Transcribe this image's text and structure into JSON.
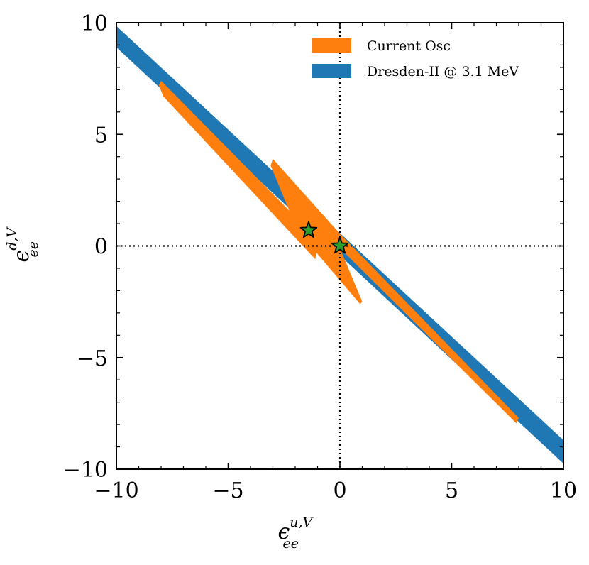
{
  "chart_data": {
    "type": "area",
    "title": "",
    "xlabel": {
      "symbol": "ϵ",
      "sub": "ee",
      "sup": "u,V"
    },
    "ylabel": {
      "symbol": "ϵ",
      "sub": "ee",
      "sup": "d,V"
    },
    "xlim": [
      -10,
      10
    ],
    "ylim": [
      -10,
      10
    ],
    "x_ticks": [
      -10,
      -5,
      0,
      5,
      10
    ],
    "y_ticks": [
      -10,
      -5,
      0,
      5,
      10
    ],
    "x_tick_labels": [
      "−10",
      "−5",
      "0",
      "5",
      "10"
    ],
    "y_tick_labels": [
      "−10",
      "−5",
      "0",
      "5",
      "10"
    ],
    "grid": false,
    "reference_lines": {
      "x": 0,
      "y": 0,
      "style": "dotted"
    },
    "legend_position": "top-right",
    "series": [
      {
        "name": "Dresden-II @ 3.1 MeV",
        "color": "#1f77b4",
        "region": [
          [
            -10.0,
            9.85
          ],
          [
            -10.0,
            8.9
          ],
          [
            10.0,
            -9.75
          ],
          [
            10.0,
            -8.7
          ]
        ]
      },
      {
        "name": "Current Osc",
        "color": "#ff7f0e",
        "regions": [
          [
            [
              -8.0,
              7.4
            ],
            [
              -1.0,
              0.3
            ],
            [
              -1.1,
              -0.6
            ],
            [
              -7.9,
              6.7
            ],
            [
              -8.1,
              7.2
            ]
          ],
          [
            [
              -3.0,
              3.9
            ],
            [
              0.0,
              0.55
            ],
            [
              8.0,
              -7.7
            ],
            [
              7.9,
              -7.95
            ],
            [
              0.0,
              -0.1
            ],
            [
              1.0,
              -2.5
            ],
            [
              0.9,
              -2.6
            ],
            [
              -1.9,
              0.7
            ],
            [
              -3.1,
              3.6
            ]
          ]
        ]
      }
    ],
    "markers": [
      {
        "x": -1.4,
        "y": 0.7,
        "symbol": "star",
        "color": "#2ca02c"
      },
      {
        "x": 0.0,
        "y": 0.0,
        "symbol": "star",
        "color": "#2ca02c"
      }
    ]
  }
}
